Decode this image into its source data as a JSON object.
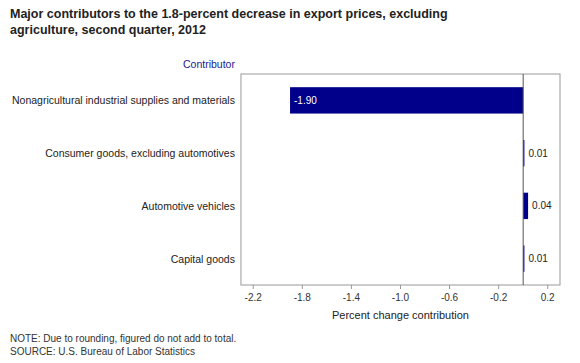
{
  "chart_data": {
    "type": "bar",
    "orientation": "horizontal",
    "title": "Major contributors to the 1.8-percent decrease in export prices, excluding\nagriculture, second quarter, 2012",
    "categories": [
      "Nonagricultural industrial supplies and materials",
      "Consumer goods, excluding automotives",
      "Automotive vehicles",
      "Capital goods"
    ],
    "values": [
      -1.9,
      0.01,
      0.04,
      0.01
    ],
    "value_labels": [
      "-1.90",
      "0.01",
      "0.04",
      "0.01"
    ],
    "data_labels": true,
    "color": "#00008B",
    "xlim": [
      -2.3,
      0.3
    ],
    "xticks": [
      -2.2,
      -1.8,
      -1.4,
      {
        "value": -1.0,
        "label": "-1.0"
      },
      -0.6,
      -0.2,
      0.2
    ],
    "xlabel": "Percent change contribution",
    "ylabel": "Contributor",
    "annotations": [
      "NOTE: Due to rounding, figured do not add to total.",
      "SOURCE: U.S. Bureau of Labor Statistics"
    ],
    "grid": false
  }
}
